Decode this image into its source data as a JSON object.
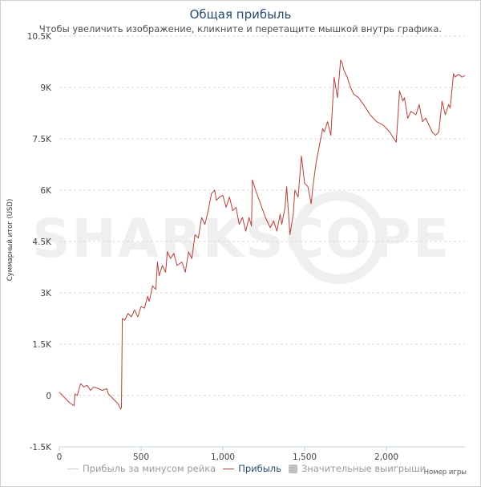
{
  "title": "Общая прибыль",
  "subtitle": "Чтобы увеличить изображение, кликните и перетащите мышкой внутрь графика.",
  "watermark": "SHARKSCOPE",
  "colors": {
    "profit": "#b5413a",
    "rake_line": "#c8c8c8",
    "big_wins": "#c0c0c0",
    "grid": "#d9d9d9",
    "title": "#274b6d"
  },
  "chart_data": {
    "type": "line",
    "title": "Общая прибыль",
    "xlabel": "Номер игры",
    "ylabel": "Суммарный итог (USD)",
    "xlim": [
      0,
      2480
    ],
    "ylim": [
      -1500,
      10500
    ],
    "grid": true,
    "legend": "bottom",
    "x_ticks": [
      0,
      500,
      1000,
      1500,
      2000
    ],
    "x_tick_labels": [
      "0",
      "500",
      "1,000",
      "1,500",
      "2,000"
    ],
    "y_ticks": [
      -1500,
      0,
      1500,
      3000,
      4500,
      6000,
      7500,
      9000,
      10500
    ],
    "y_tick_labels": [
      "-1.5K",
      "0",
      "1.5K",
      "3K",
      "4.5K",
      "6K",
      "7.5K",
      "9K",
      "10.5K"
    ],
    "legend_entries": [
      "Прибыль за минусом рейка",
      "Прибыль",
      "Значительные выигрыши"
    ],
    "series": [
      {
        "name": "Прибыль",
        "x": [
          0,
          30,
          60,
          90,
          95,
          110,
          130,
          150,
          170,
          190,
          210,
          240,
          260,
          290,
          300,
          320,
          340,
          360,
          375,
          380,
          385,
          400,
          420,
          440,
          460,
          480,
          500,
          520,
          540,
          550,
          570,
          590,
          600,
          610,
          630,
          650,
          660,
          680,
          700,
          720,
          750,
          770,
          790,
          810,
          830,
          850,
          870,
          890,
          910,
          930,
          950,
          960,
          980,
          1000,
          1020,
          1040,
          1060,
          1080,
          1100,
          1120,
          1140,
          1160,
          1175,
          1180,
          1200,
          1230,
          1260,
          1290,
          1310,
          1330,
          1350,
          1360,
          1380,
          1390,
          1410,
          1430,
          1440,
          1460,
          1480,
          1500,
          1520,
          1540,
          1550,
          1570,
          1590,
          1610,
          1620,
          1640,
          1660,
          1680,
          1700,
          1720,
          1730,
          1740,
          1760,
          1780,
          1800,
          1830,
          1860,
          1900,
          1940,
          1980,
          2020,
          2060,
          2080,
          2100,
          2110,
          2130,
          2150,
          2180,
          2200,
          2220,
          2240,
          2260,
          2280,
          2300,
          2320,
          2340,
          2360,
          2380,
          2390,
          2410,
          2420,
          2430,
          2440,
          2450,
          2460,
          2470,
          2480
        ],
        "values": [
          100,
          -50,
          -200,
          -300,
          50,
          0,
          350,
          250,
          300,
          150,
          250,
          200,
          150,
          200,
          50,
          -50,
          -150,
          -250,
          -400,
          -350,
          2250,
          2200,
          2400,
          2300,
          2500,
          2300,
          2600,
          2550,
          2900,
          2750,
          3200,
          3100,
          3900,
          3500,
          3800,
          3600,
          4200,
          4000,
          4150,
          3800,
          3900,
          3600,
          4200,
          4000,
          4700,
          4600,
          5200,
          5000,
          5400,
          5900,
          6000,
          5700,
          5800,
          5850,
          5500,
          5800,
          5400,
          5500,
          5000,
          5200,
          4800,
          5200,
          4950,
          6300,
          6000,
          5600,
          5200,
          4900,
          5100,
          4800,
          5300,
          5000,
          5500,
          6100,
          4700,
          5300,
          6000,
          5800,
          7000,
          6200,
          6100,
          5600,
          6100,
          6800,
          7300,
          7800,
          7700,
          8000,
          7600,
          9300,
          8700,
          9800,
          9700,
          9500,
          9300,
          9000,
          8800,
          8700,
          8500,
          8200,
          8000,
          7900,
          7700,
          7400,
          8900,
          8600,
          8700,
          8100,
          8300,
          8200,
          8500,
          8000,
          8100,
          7900,
          7700,
          7600,
          7700,
          8600,
          8200,
          8500,
          8400,
          9400,
          9300,
          9350,
          9380,
          9360,
          9300,
          9320,
          9350
        ]
      }
    ]
  },
  "legend": {
    "rake_label": "Прибыль за минусом рейка",
    "profit_label": "Прибыль",
    "big_wins_label": "Значительные выигрыши"
  }
}
